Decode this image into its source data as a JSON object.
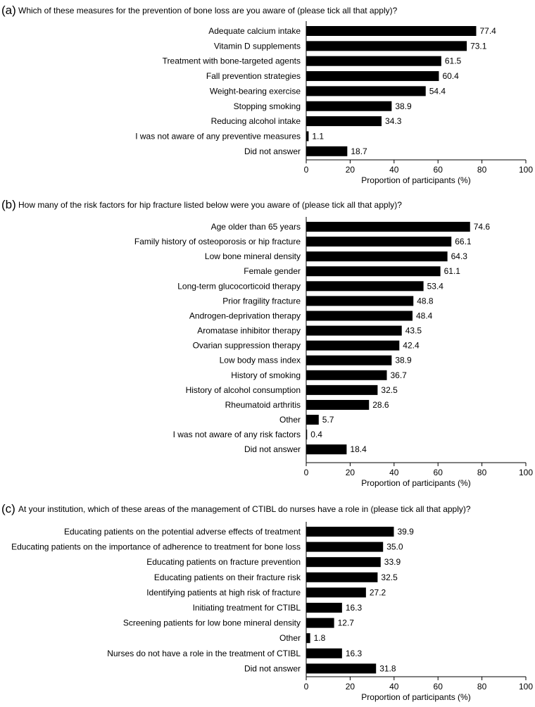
{
  "chart_data": [
    {
      "type": "bar",
      "orientation": "horizontal",
      "panel_label": "(a)",
      "question": "Which of these measures for the prevention of bone loss are you aware of (please tick all that apply)?",
      "categories": [
        "Adequate calcium intake",
        "Vitamin D supplements",
        "Treatment with bone-targeted agents",
        "Fall prevention strategies",
        "Weight-bearing exercise",
        "Stopping smoking",
        "Reducing alcohol intake",
        "I was not aware of any preventive measures",
        "Did not answer"
      ],
      "values": [
        77.4,
        73.1,
        61.5,
        60.4,
        54.4,
        38.9,
        34.3,
        1.1,
        18.7
      ],
      "value_labels": [
        "77.4",
        "73.1",
        "61.5",
        "60.4",
        "54.4",
        "38.9",
        "34.3",
        "1.1",
        "18.7"
      ],
      "xlabel": "Proportion of participants (%)",
      "xlim": [
        0,
        100
      ],
      "xticks": [
        "0",
        "20",
        "40",
        "60",
        "80",
        "100"
      ],
      "bar_color": "#000000",
      "grid": false,
      "legend": "none"
    },
    {
      "type": "bar",
      "orientation": "horizontal",
      "panel_label": "(b)",
      "question": "How many of the risk factors for hip fracture listed below were you aware of (please tick all that apply)?",
      "categories": [
        "Age older than 65 years",
        "Family history of osteoporosis or hip fracture",
        "Low bone mineral density",
        "Female gender",
        "Long-term glucocorticoid therapy",
        "Prior fragility fracture",
        "Androgen-deprivation therapy",
        "Aromatase inhibitor therapy",
        "Ovarian suppression therapy",
        "Low body mass index",
        "History of smoking",
        "History of alcohol consumption",
        "Rheumatoid arthritis",
        "Other",
        "I was not aware of any risk factors",
        "Did not answer"
      ],
      "values": [
        74.6,
        66.1,
        64.3,
        61.1,
        53.4,
        48.8,
        48.4,
        43.5,
        42.4,
        38.9,
        36.7,
        32.5,
        28.6,
        5.7,
        0.4,
        18.4
      ],
      "value_labels": [
        "74.6",
        "66.1",
        "64.3",
        "61.1",
        "53.4",
        "48.8",
        "48.4",
        "43.5",
        "42.4",
        "38.9",
        "36.7",
        "32.5",
        "28.6",
        "5.7",
        "0.4",
        "18.4"
      ],
      "xlabel": "Proportion of participants (%)",
      "xlim": [
        0,
        100
      ],
      "xticks": [
        "0",
        "20",
        "40",
        "60",
        "80",
        "100"
      ],
      "bar_color": "#000000",
      "grid": false,
      "legend": "none"
    },
    {
      "type": "bar",
      "orientation": "horizontal",
      "panel_label": "(c)",
      "question": "At your institution, which of these areas of the management of CTIBL do nurses have a role in (please tick all that apply)?",
      "categories": [
        "Educating patients on the potential adverse effects of treatment",
        "Educating patients on the importance of adherence to treatment for bone loss",
        "Educating patients on fracture prevention",
        "Educating patients on their fracture risk",
        "Identifying patients at high risk of fracture",
        "Initiating treatment for CTIBL",
        "Screening patients for low bone mineral density",
        "Other",
        "Nurses do not have a role in the treatment of CTIBL",
        "Did not answer"
      ],
      "values": [
        39.9,
        35.0,
        33.9,
        32.5,
        27.2,
        16.3,
        12.7,
        1.8,
        16.3,
        31.8
      ],
      "value_labels": [
        "39.9",
        "35.0",
        "33.9",
        "32.5",
        "27.2",
        "16.3",
        "12.7",
        "1.8",
        "16.3",
        "31.8"
      ],
      "xlabel": "Proportion of participants (%)",
      "xlim": [
        0,
        100
      ],
      "xticks": [
        "0",
        "20",
        "40",
        "60",
        "80",
        "100"
      ],
      "bar_color": "#000000",
      "grid": false,
      "legend": "none"
    }
  ]
}
